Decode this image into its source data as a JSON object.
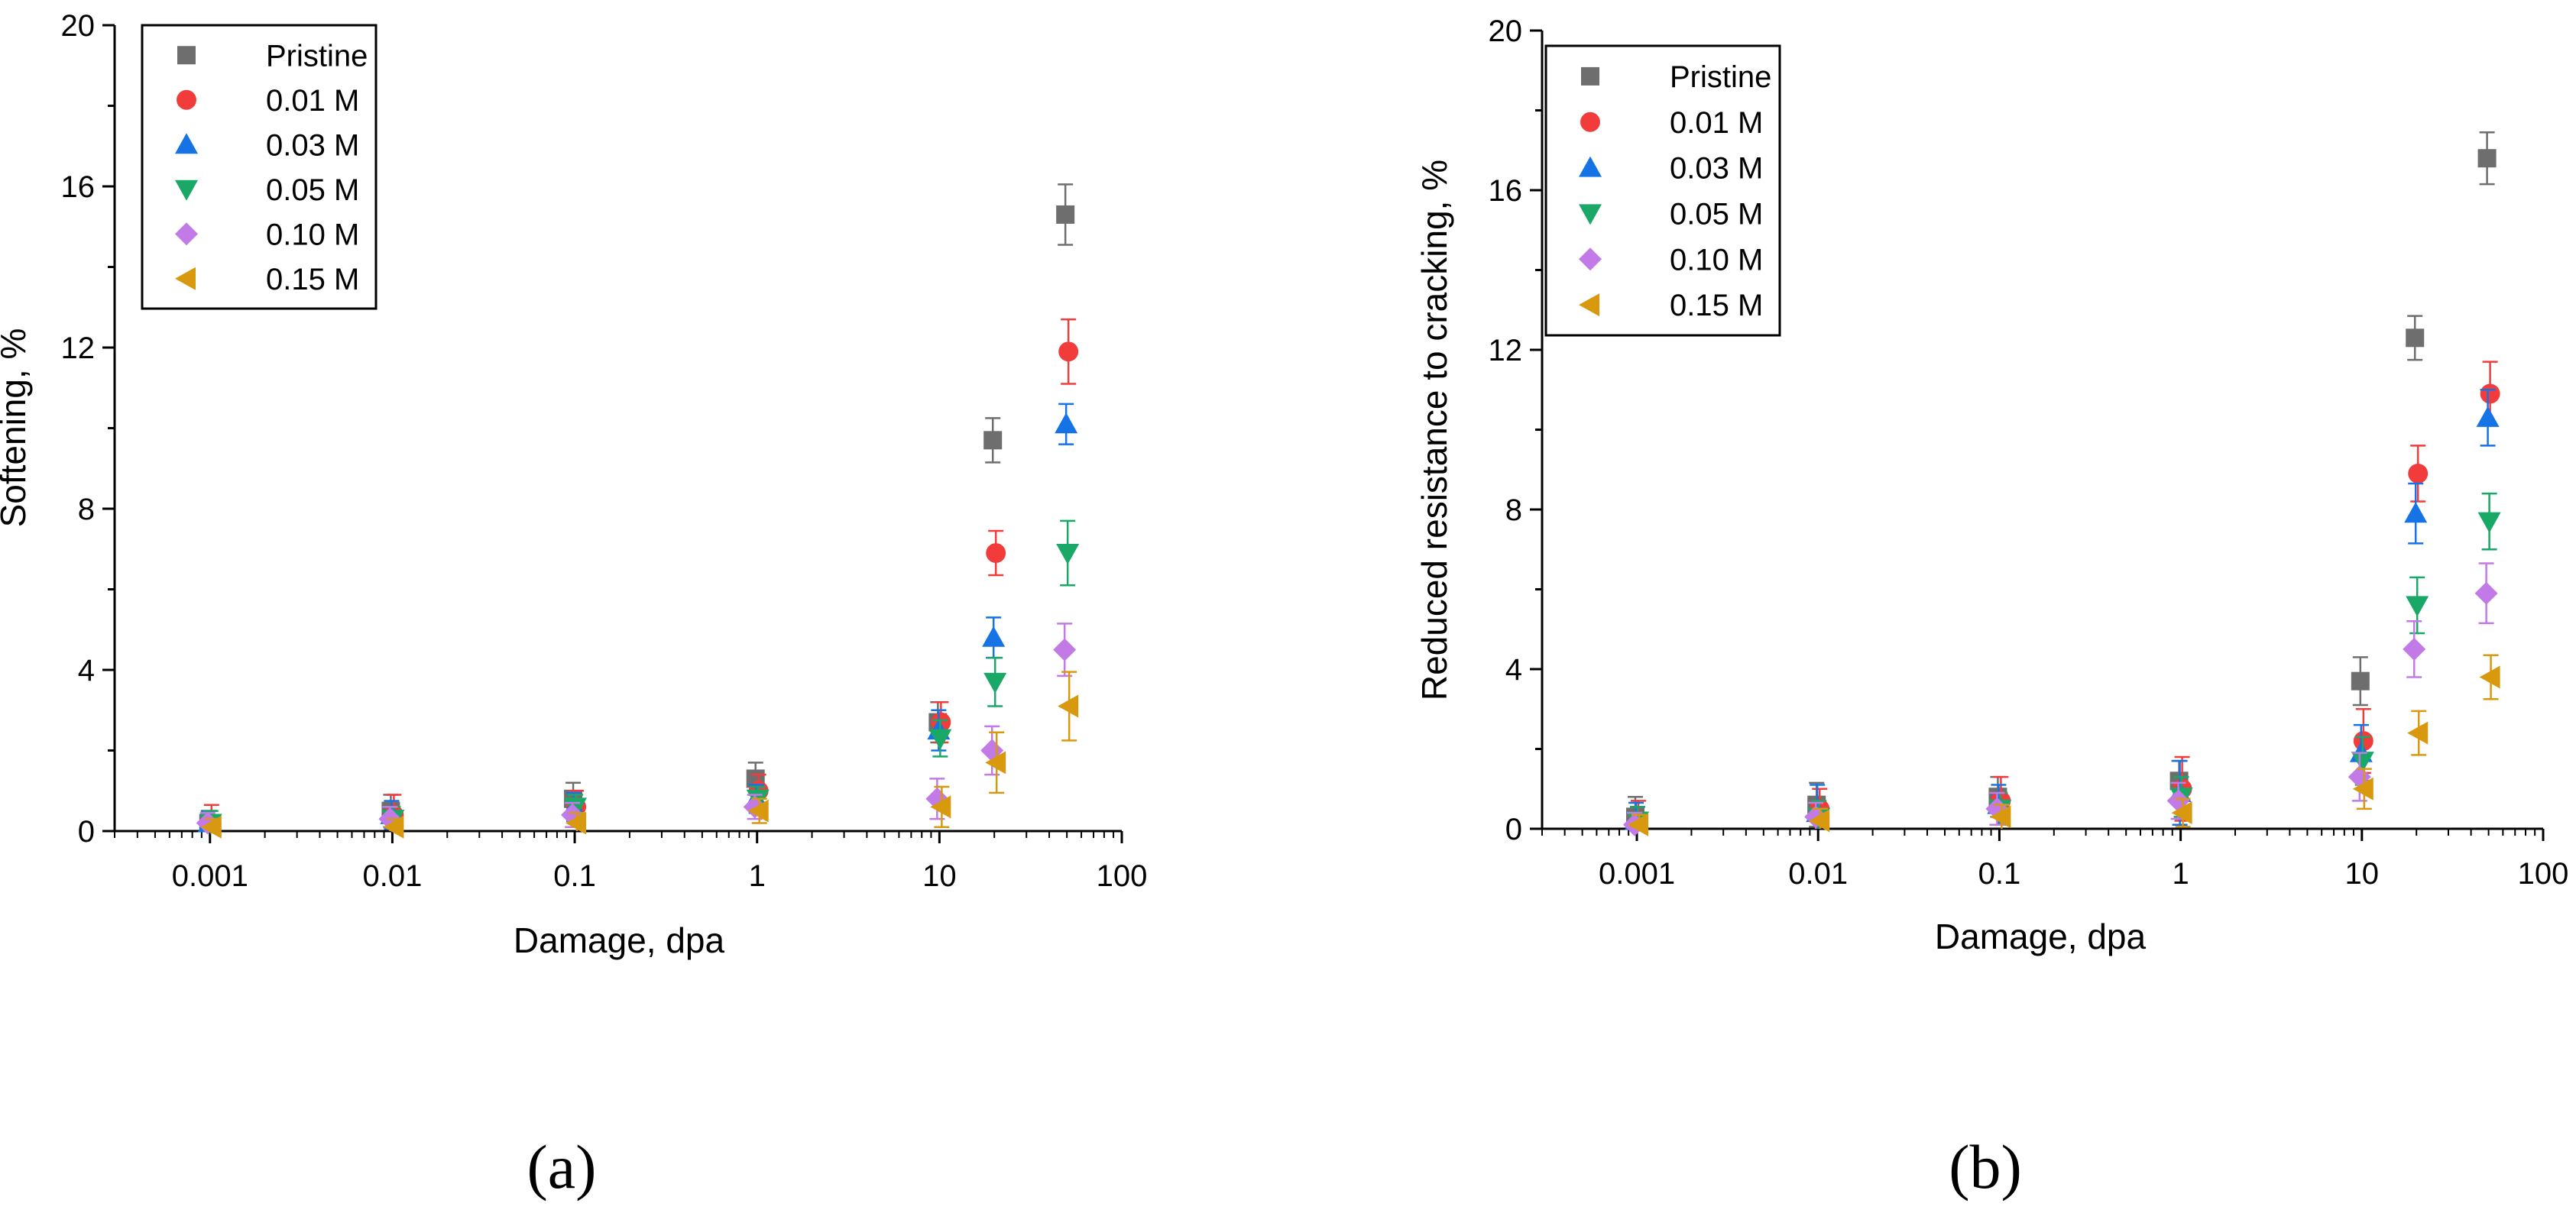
{
  "figure": {
    "panel_a_label": "(a)",
    "panel_b_label": "(b)"
  },
  "colors": {
    "Pristine": "#6e6e6e",
    "0.01 M": "#f23c3c",
    "0.03 M": "#1673e6",
    "0.05 M": "#1aa867",
    "0.10 M": "#c27ae6",
    "0.15 M": "#d9990f"
  },
  "chart_data": [
    {
      "type": "scatter",
      "panel": "a",
      "title": "",
      "xlabel": "Damage, dpa",
      "ylabel": "Softening, %",
      "xscale": "log",
      "xlim": [
        0.0003,
        100
      ],
      "ylim": [
        0,
        20
      ],
      "xticks": [
        0.001,
        0.01,
        0.1,
        1,
        10,
        100
      ],
      "xtick_labels": [
        "0.001",
        "0.01",
        "0.1",
        "1",
        "10",
        "100"
      ],
      "yticks": [
        0,
        4,
        8,
        12,
        16,
        20
      ],
      "ytick_labels": [
        "0",
        "4",
        "8",
        "12",
        "16",
        "20"
      ],
      "grid": false,
      "legend_position": "top-left",
      "x": [
        0.001,
        0.01,
        0.1,
        1,
        10,
        20,
        50
      ],
      "series": [
        {
          "name": "Pristine",
          "marker": "square",
          "values": [
            0.2,
            0.5,
            0.8,
            1.3,
            2.7,
            9.7,
            15.3
          ],
          "errors": [
            0.3,
            0.4,
            0.4,
            0.4,
            0.5,
            0.55,
            0.75
          ]
        },
        {
          "name": "0.01 M",
          "marker": "circle",
          "values": [
            0.2,
            0.4,
            0.6,
            1.0,
            2.7,
            6.9,
            11.9
          ],
          "errors": [
            0.45,
            0.5,
            0.4,
            0.4,
            0.5,
            0.55,
            0.8
          ]
        },
        {
          "name": "0.03 M",
          "marker": "triangle-up",
          "values": [
            0.2,
            0.4,
            0.6,
            0.8,
            2.5,
            4.8,
            10.1
          ],
          "errors": [
            0.3,
            0.35,
            0.35,
            0.35,
            0.5,
            0.5,
            0.5
          ]
        },
        {
          "name": "0.05 M",
          "marker": "triangle-down",
          "values": [
            0.2,
            0.3,
            0.6,
            0.8,
            2.3,
            3.7,
            6.9
          ],
          "errors": [
            0.3,
            0.3,
            0.3,
            0.3,
            0.45,
            0.6,
            0.8
          ]
        },
        {
          "name": "0.10 M",
          "marker": "diamond",
          "values": [
            0.2,
            0.3,
            0.4,
            0.6,
            0.8,
            2.0,
            4.5
          ],
          "errors": [
            0.25,
            0.3,
            0.3,
            0.3,
            0.5,
            0.6,
            0.65
          ]
        },
        {
          "name": "0.15 M",
          "marker": "triangle-left",
          "values": [
            0.1,
            0.1,
            0.2,
            0.5,
            0.6,
            1.7,
            3.1
          ],
          "errors": [
            0.2,
            0.2,
            0.25,
            0.3,
            0.5,
            0.75,
            0.85
          ]
        }
      ]
    },
    {
      "type": "scatter",
      "panel": "b",
      "title": "",
      "xlabel": "Damage, dpa",
      "ylabel": "Reduced resistance to cracking, %",
      "xscale": "log",
      "xlim": [
        0.0003,
        100
      ],
      "ylim": [
        0,
        20
      ],
      "xticks": [
        0.001,
        0.01,
        0.1,
        1,
        10,
        100
      ],
      "xtick_labels": [
        "0.001",
        "0.01",
        "0.1",
        "1",
        "10",
        "100"
      ],
      "yticks": [
        0,
        4,
        8,
        12,
        16,
        20
      ],
      "ytick_labels": [
        "0",
        "4",
        "8",
        "12",
        "16",
        "20"
      ],
      "grid": false,
      "legend_position": "top-left",
      "x": [
        0.001,
        0.01,
        0.1,
        1,
        10,
        20,
        50
      ],
      "series": [
        {
          "name": "Pristine",
          "marker": "square",
          "values": [
            0.3,
            0.6,
            0.8,
            1.2,
            3.7,
            12.3,
            16.8
          ],
          "errors": [
            0.5,
            0.55,
            0.5,
            0.5,
            0.6,
            0.55,
            0.65
          ]
        },
        {
          "name": "0.01 M",
          "marker": "circle",
          "values": [
            0.2,
            0.5,
            0.7,
            1.0,
            2.2,
            8.9,
            10.9
          ],
          "errors": [
            0.5,
            0.5,
            0.6,
            0.8,
            0.8,
            0.7,
            0.8
          ]
        },
        {
          "name": "0.03 M",
          "marker": "triangle-up",
          "values": [
            0.2,
            0.4,
            0.6,
            0.9,
            1.9,
            7.9,
            10.3
          ],
          "errors": [
            0.45,
            0.7,
            0.5,
            0.8,
            0.7,
            0.75,
            0.7
          ]
        },
        {
          "name": "0.05 M",
          "marker": "triangle-down",
          "values": [
            0.2,
            0.3,
            0.5,
            0.8,
            1.7,
            5.6,
            7.7
          ],
          "errors": [
            0.35,
            0.4,
            0.4,
            0.5,
            0.6,
            0.7,
            0.7
          ]
        },
        {
          "name": "0.10 M",
          "marker": "diamond",
          "values": [
            0.1,
            0.3,
            0.5,
            0.7,
            1.3,
            4.5,
            5.9
          ],
          "errors": [
            0.3,
            0.35,
            0.4,
            0.45,
            0.6,
            0.7,
            0.75
          ]
        },
        {
          "name": "0.15 M",
          "marker": "triangle-left",
          "values": [
            0.1,
            0.2,
            0.3,
            0.4,
            1.0,
            2.4,
            3.8
          ],
          "errors": [
            0.25,
            0.3,
            0.3,
            0.35,
            0.5,
            0.55,
            0.55
          ]
        }
      ]
    }
  ]
}
